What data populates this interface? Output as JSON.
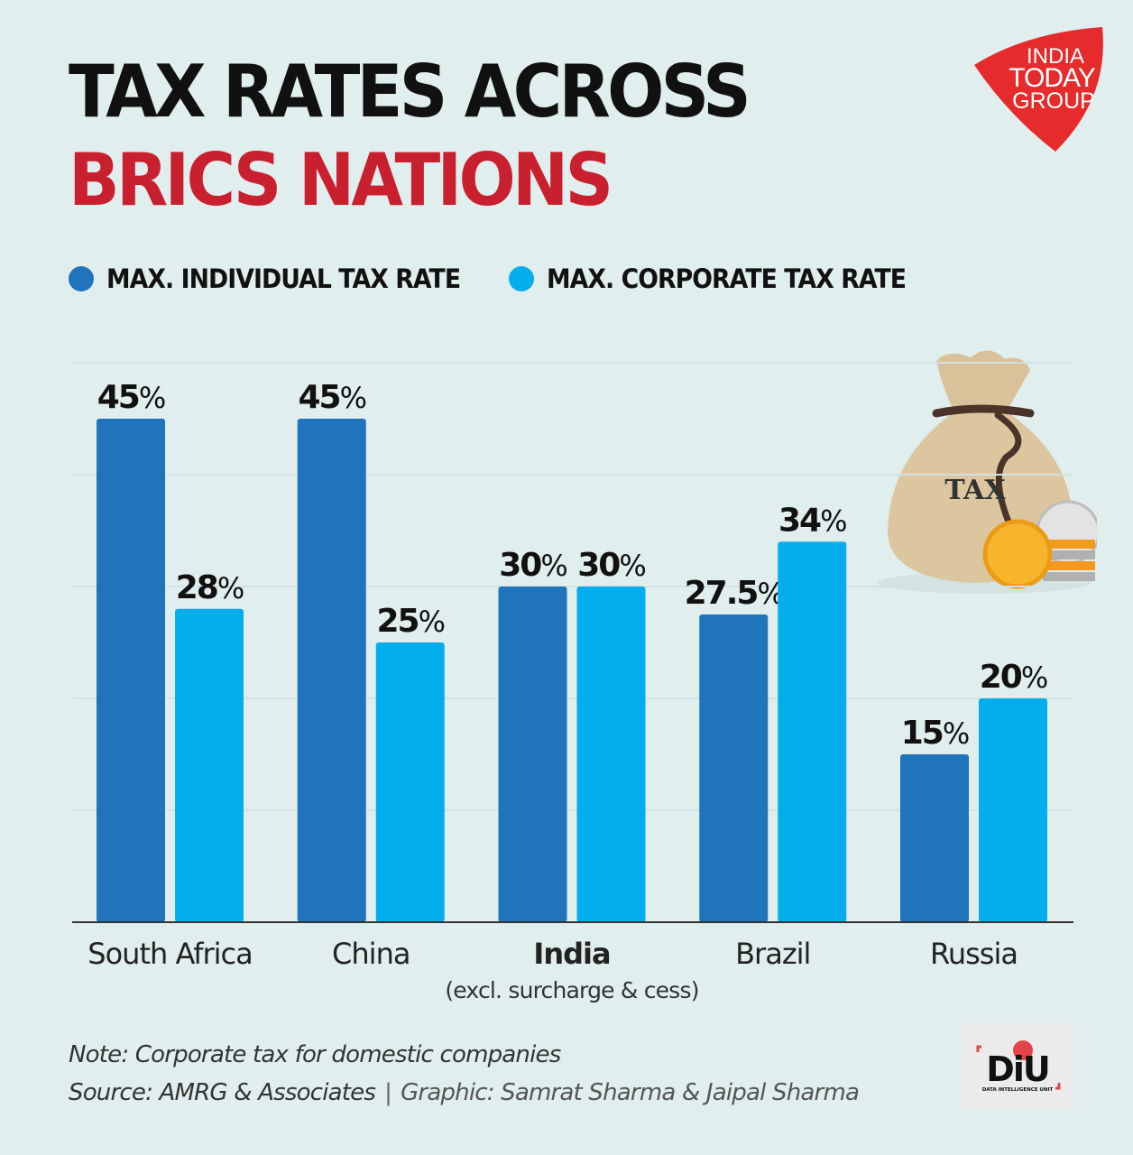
{
  "header": {
    "title_line1": "TAX RATES ACROSS",
    "title_line2": "BRICS NATIONS"
  },
  "brand": {
    "logo_line1": "INDIA",
    "logo_line2": "TODAY",
    "logo_line3": "GROUP",
    "diu_mark": "DiU",
    "diu_sub": "DATA INTELLIGENCE UNIT"
  },
  "illustration": {
    "bag_label": "TAX"
  },
  "colors": {
    "individual": "#1f74bb",
    "corporate": "#04adec",
    "title_red": "#c8202f",
    "background": "#e0eeee"
  },
  "chart_data": {
    "type": "bar",
    "title": "TAX RATES ACROSS BRICS NATIONS",
    "xlabel": "",
    "ylabel": "",
    "ylim": [
      0,
      50
    ],
    "grid": true,
    "legend_position": "top-left",
    "categories": [
      "South Africa",
      "China",
      "India",
      "Brazil",
      "Russia"
    ],
    "category_notes": [
      "",
      "",
      "(excl. surcharge & cess)",
      "",
      ""
    ],
    "highlight_category": "India",
    "series": [
      {
        "name": "MAX. INDIVIDUAL TAX RATE",
        "values": [
          45,
          45,
          30,
          27.5,
          15
        ],
        "labels": [
          "45",
          "45",
          "30",
          "27.5",
          "15"
        ]
      },
      {
        "name": "MAX. CORPORATE TAX RATE",
        "values": [
          28,
          25,
          30,
          34,
          20
        ],
        "labels": [
          "28",
          "25",
          "30",
          "34",
          "20"
        ]
      }
    ],
    "unit_suffix": "%"
  },
  "footer": {
    "note": "Note: Corporate tax for domestic companies",
    "source": "Source: AMRG & Associates",
    "separator": "|",
    "graphic": "Graphic: Samrat Sharma & Jaipal Sharma"
  }
}
